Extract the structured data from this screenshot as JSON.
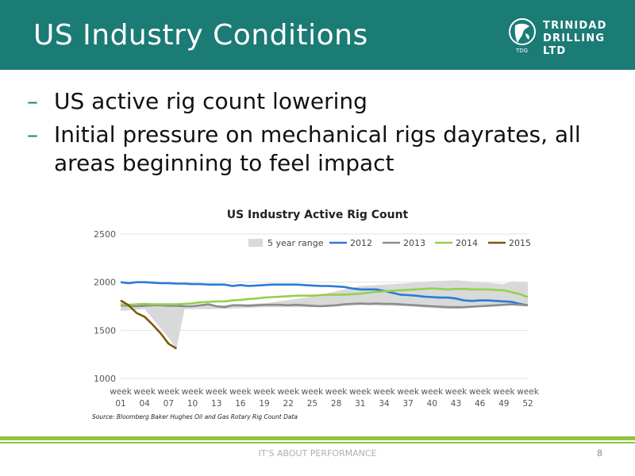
{
  "header": {
    "title": "US Industry Conditions",
    "logo_line1": "TRINIDAD",
    "logo_line2": "DRILLING LTD",
    "logo_sub": "TDG"
  },
  "bullets": [
    "US active rig count lowering",
    "Initial pressure on mechanical rigs dayrates, all areas beginning to feel impact"
  ],
  "chart_data": {
    "type": "line",
    "title": "US Industry Active Rig Count",
    "ylim": [
      1000,
      2500
    ],
    "yticks": [
      1000,
      1500,
      2000,
      2500
    ],
    "xlim": [
      1,
      52
    ],
    "x_tick_labels": [
      {
        "top": "week",
        "bottom": "01",
        "x": 1
      },
      {
        "top": "week",
        "bottom": "04",
        "x": 4
      },
      {
        "top": "week",
        "bottom": "07",
        "x": 7
      },
      {
        "top": "week",
        "bottom": "10",
        "x": 10
      },
      {
        "top": "week",
        "bottom": "13",
        "x": 13
      },
      {
        "top": "week",
        "bottom": "16",
        "x": 16
      },
      {
        "top": "week",
        "bottom": "19",
        "x": 19
      },
      {
        "top": "week",
        "bottom": "22",
        "x": 22
      },
      {
        "top": "week",
        "bottom": "25",
        "x": 25
      },
      {
        "top": "week",
        "bottom": "28",
        "x": 28
      },
      {
        "top": "week",
        "bottom": "31",
        "x": 31
      },
      {
        "top": "week",
        "bottom": "34",
        "x": 34
      },
      {
        "top": "week",
        "bottom": "37",
        "x": 37
      },
      {
        "top": "week",
        "bottom": "40",
        "x": 40
      },
      {
        "top": "week",
        "bottom": "43",
        "x": 43
      },
      {
        "top": "week",
        "bottom": "46",
        "x": 46
      },
      {
        "top": "week",
        "bottom": "49",
        "x": 49
      },
      {
        "top": "week",
        "bottom": "52",
        "x": 52
      }
    ],
    "grid": "horizontal",
    "legend_position": "top-right",
    "source": "Source: Bloomberg Baker Hughes Oil and Gas Rotary Rig Count Data",
    "range": {
      "name": "5 year range",
      "color": "#d9d9d9",
      "x": [
        1,
        4,
        7,
        8,
        9,
        13,
        19,
        25,
        31,
        37,
        40,
        43,
        46,
        49,
        50,
        52
      ],
      "upper": [
        1760,
        1760,
        1750,
        1750,
        1750,
        1760,
        1780,
        1850,
        1960,
        1990,
        2010,
        2020,
        2000,
        1980,
        2010,
        2000
      ],
      "lower": [
        1700,
        1720,
        1420,
        1310,
        1720,
        1720,
        1740,
        1740,
        1760,
        1750,
        1730,
        1720,
        1740,
        1760,
        1760,
        1760
      ]
    },
    "series": [
      {
        "name": "2012",
        "color": "#2a7ad6",
        "x": [
          1,
          2,
          3,
          4,
          5,
          6,
          7,
          8,
          9,
          10,
          11,
          12,
          13,
          14,
          15,
          16,
          17,
          18,
          19,
          20,
          21,
          22,
          23,
          24,
          25,
          26,
          27,
          28,
          29,
          30,
          31,
          32,
          33,
          34,
          35,
          36,
          37,
          38,
          39,
          40,
          41,
          42,
          43,
          44,
          45,
          46,
          47,
          48,
          49,
          50,
          51,
          52
        ],
        "values": [
          2000,
          1990,
          2000,
          2000,
          1995,
          1990,
          1990,
          1985,
          1985,
          1980,
          1980,
          1975,
          1975,
          1975,
          1960,
          1970,
          1960,
          1965,
          1970,
          1975,
          1975,
          1975,
          1975,
          1970,
          1965,
          1960,
          1960,
          1955,
          1950,
          1935,
          1925,
          1925,
          1925,
          1910,
          1890,
          1870,
          1865,
          1860,
          1850,
          1845,
          1840,
          1840,
          1830,
          1810,
          1805,
          1810,
          1810,
          1805,
          1800,
          1795,
          1775,
          1760
        ]
      },
      {
        "name": "2013",
        "color": "#8c8c8c",
        "x": [
          1,
          2,
          3,
          4,
          5,
          6,
          7,
          8,
          9,
          10,
          11,
          12,
          13,
          14,
          15,
          16,
          17,
          18,
          19,
          20,
          21,
          22,
          23,
          24,
          25,
          26,
          27,
          28,
          29,
          30,
          31,
          32,
          33,
          34,
          35,
          36,
          37,
          38,
          39,
          40,
          41,
          42,
          43,
          44,
          45,
          46,
          47,
          48,
          49,
          50,
          51,
          52
        ],
        "values": [
          1760,
          1755,
          1750,
          1755,
          1760,
          1760,
          1755,
          1755,
          1750,
          1750,
          1760,
          1770,
          1750,
          1740,
          1760,
          1760,
          1755,
          1760,
          1765,
          1765,
          1765,
          1760,
          1765,
          1760,
          1755,
          1750,
          1755,
          1760,
          1770,
          1775,
          1780,
          1775,
          1780,
          1775,
          1775,
          1770,
          1765,
          1760,
          1755,
          1750,
          1745,
          1740,
          1740,
          1740,
          1745,
          1750,
          1755,
          1760,
          1765,
          1770,
          1765,
          1760
        ]
      },
      {
        "name": "2014",
        "color": "#92d050",
        "x": [
          1,
          2,
          3,
          4,
          5,
          6,
          7,
          8,
          9,
          10,
          11,
          12,
          13,
          14,
          15,
          16,
          17,
          18,
          19,
          20,
          21,
          22,
          23,
          24,
          25,
          26,
          27,
          28,
          29,
          30,
          31,
          32,
          33,
          34,
          35,
          36,
          37,
          38,
          39,
          40,
          41,
          42,
          43,
          44,
          45,
          46,
          47,
          48,
          49,
          50,
          51,
          52
        ],
        "values": [
          1770,
          1765,
          1770,
          1775,
          1770,
          1770,
          1770,
          1770,
          1775,
          1780,
          1790,
          1795,
          1800,
          1800,
          1810,
          1815,
          1825,
          1830,
          1840,
          1845,
          1850,
          1855,
          1860,
          1860,
          1860,
          1865,
          1870,
          1870,
          1870,
          1875,
          1880,
          1890,
          1900,
          1905,
          1910,
          1915,
          1920,
          1925,
          1930,
          1935,
          1930,
          1925,
          1930,
          1930,
          1925,
          1925,
          1925,
          1920,
          1915,
          1895,
          1875,
          1845
        ]
      },
      {
        "name": "2015",
        "color": "#7a5a0a",
        "x": [
          1,
          2,
          3,
          4,
          5,
          6,
          7,
          8
        ],
        "values": [
          1810,
          1760,
          1680,
          1640,
          1560,
          1470,
          1360,
          1310
        ]
      }
    ]
  },
  "footer": {
    "tagline": "IT'S ABOUT PERFORMANCE",
    "page_number": "8"
  }
}
